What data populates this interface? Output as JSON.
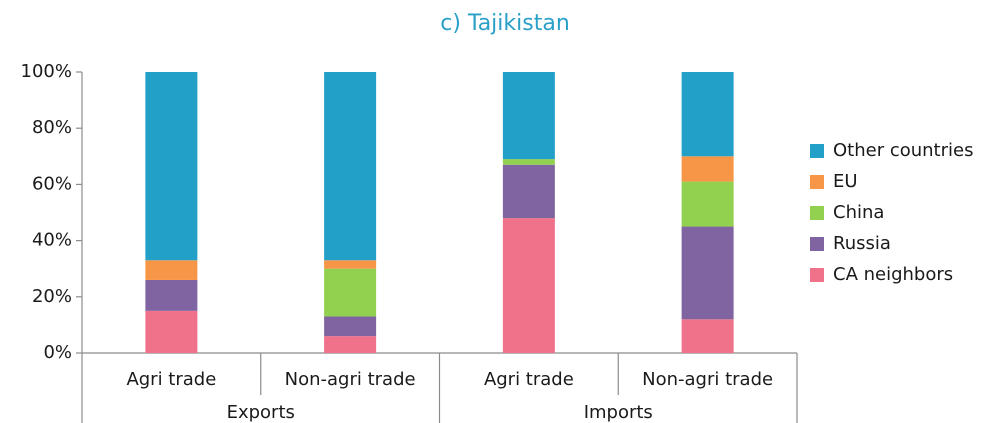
{
  "chart_data": {
    "type": "stacked_bar",
    "title": "c) Tajikistan",
    "categories": [
      "Agri trade",
      "Non-agri trade",
      "Agri trade",
      "Non-agri trade"
    ],
    "groups": [
      "Exports",
      "Imports"
    ],
    "series": [
      {
        "name": "CA neighbors",
        "color": "#f0728a",
        "values": [
          15,
          6,
          48,
          12
        ]
      },
      {
        "name": "Russia",
        "color": "#8064a2",
        "values": [
          11,
          7,
          19,
          33
        ]
      },
      {
        "name": "China",
        "color": "#92d050",
        "values": [
          0,
          17,
          2,
          16
        ]
      },
      {
        "name": "EU",
        "color": "#f79646",
        "values": [
          7,
          3,
          0,
          9
        ]
      },
      {
        "name": "Other countries",
        "color": "#23a0c8",
        "values": [
          67,
          67,
          31,
          30
        ]
      }
    ],
    "ylim": [
      0,
      100
    ],
    "yticks": [
      {
        "value": 0,
        "label": "0%"
      },
      {
        "value": 20,
        "label": "20%"
      },
      {
        "value": 40,
        "label": "40%"
      },
      {
        "value": 60,
        "label": "60%"
      },
      {
        "value": 80,
        "label": "80%"
      },
      {
        "value": 100,
        "label": "100%"
      }
    ],
    "legend": "right"
  }
}
